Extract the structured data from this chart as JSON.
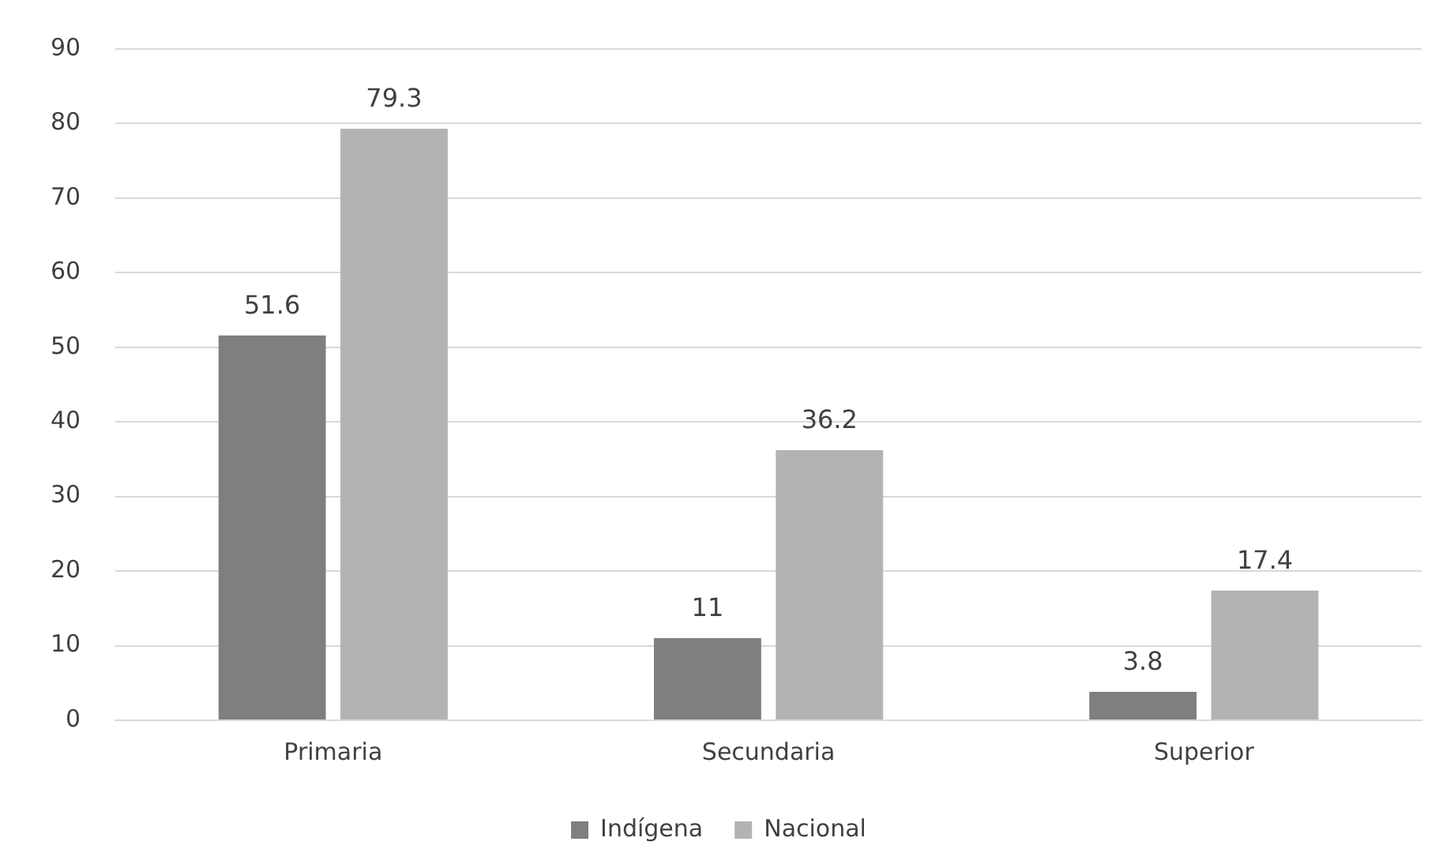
{
  "chart_data": {
    "type": "bar",
    "categories": [
      "Primaria",
      "Secundaria",
      "Superior"
    ],
    "series": [
      {
        "name": "Indígena",
        "color": "#7f7f7f",
        "values": [
          51.6,
          11,
          3.8
        ]
      },
      {
        "name": "Nacional",
        "color": "#b3b3b3",
        "values": [
          79.3,
          36.2,
          17.4
        ]
      }
    ],
    "ylim": [
      0,
      90
    ],
    "yticks": [
      0,
      10,
      20,
      30,
      40,
      50,
      60,
      70,
      80,
      90
    ],
    "grid": "y",
    "legend": "bottom",
    "data_labels": true
  }
}
